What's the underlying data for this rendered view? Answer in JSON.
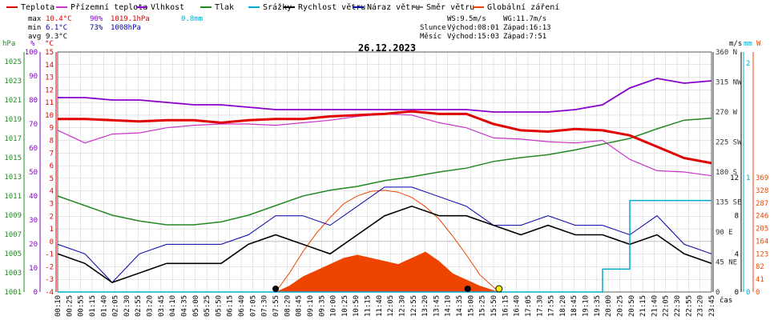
{
  "chart_data": {
    "type": "line",
    "title": "26.12.2023",
    "legend": [
      {
        "name": "Teplota",
        "color": "#e00000"
      },
      {
        "name": "Přízemní teplota",
        "color": "#cc33cc"
      },
      {
        "name": "Vlhkost",
        "color": "#8800cc"
      },
      {
        "name": "Tlak",
        "color": "#228822"
      },
      {
        "name": "Srážky",
        "color": "#00aacc"
      },
      {
        "name": "Rychlost větru",
        "color": "#000000"
      },
      {
        "name": "Náraz větru",
        "color": "#0000aa"
      },
      {
        "name": "Směr větru",
        "color": "#777777"
      },
      {
        "name": "Globální záření",
        "color": "#ee4400"
      }
    ],
    "stats": {
      "max_label": "max",
      "max_temp": "10.4°C",
      "max_hum": "90%",
      "max_press": "1019.1hPa",
      "max_rain": "0.8mm",
      "min_label": "min",
      "min_temp": "6.1°C",
      "min_hum": "73%",
      "min_press": "1008hPa",
      "avg_label": "avg",
      "avg_temp": "9.3°C"
    },
    "wind_summary": {
      "ws": "WS:9.5m/s",
      "wg": "WG:11.7m/s"
    },
    "sun": {
      "label": "Slunce",
      "rise": "Východ:08:01",
      "set": "Západ:16:13"
    },
    "moon": {
      "label": "Měsíc",
      "rise": "Východ:15:03",
      "set": "Západ:7:51"
    },
    "axis_units": {
      "hpa": "hPa",
      "pct": "%",
      "degc": "°C",
      "ms": "m/s",
      "mm": "mm",
      "w": "W",
      "time": "čas"
    },
    "axes": {
      "hpa": [
        "1025",
        "1023",
        "1021",
        "1019",
        "1017",
        "1015",
        "1013",
        "1011",
        "1009",
        "1007",
        "1005",
        "1003",
        "1001"
      ],
      "pct": [
        "100",
        "90",
        "80",
        "70",
        "60",
        "50",
        "40",
        "30",
        "20",
        "10",
        "0"
      ],
      "degc": [
        "15",
        "14",
        "13",
        "12",
        "11",
        "10",
        "9",
        "8",
        "7",
        "6",
        "5",
        "4",
        "3",
        "2",
        "1",
        "0",
        "-1",
        "-2",
        "-3",
        "-4"
      ],
      "dir": [
        "360 N",
        "315 NW",
        "270 W",
        "225 SW",
        "180 S",
        "135 SE",
        "90 E",
        "45 NE",
        "0"
      ],
      "ms": [
        "12",
        "8",
        "4",
        "0"
      ],
      "mm": [
        "2",
        "1",
        "0"
      ],
      "w": [
        "369",
        "328",
        "287",
        "246",
        "205",
        "164",
        "123",
        "82",
        "41",
        "0"
      ]
    },
    "x_ticks": [
      "00:10",
      "00:25",
      "00:55",
      "01:15",
      "01:40",
      "02:05",
      "02:30",
      "02:55",
      "03:20",
      "03:45",
      "04:10",
      "04:35",
      "05:00",
      "05:25",
      "05:50",
      "06:15",
      "06:40",
      "07:05",
      "07:30",
      "07:55",
      "08:20",
      "08:45",
      "09:10",
      "09:35",
      "10:00",
      "10:25",
      "10:50",
      "11:15",
      "11:40",
      "12:05",
      "12:30",
      "12:55",
      "13:20",
      "13:45",
      "14:10",
      "14:35",
      "15:00",
      "15:25",
      "15:50",
      "16:15",
      "16:40",
      "17:05",
      "17:30",
      "17:55",
      "18:20",
      "18:45",
      "19:10",
      "19:35",
      "20:00",
      "20:25",
      "20:50",
      "21:15",
      "21:40",
      "22:05",
      "22:30",
      "22:55",
      "23:20",
      "23:45"
    ],
    "series_hours": [
      0,
      1,
      2,
      3,
      4,
      5,
      6,
      7,
      8,
      9,
      10,
      11,
      12,
      13,
      14,
      15,
      16,
      17,
      18,
      19,
      20,
      21,
      22,
      23,
      24
    ],
    "temperature_c": [
      9.7,
      9.7,
      9.6,
      9.5,
      9.6,
      9.6,
      9.4,
      9.6,
      9.7,
      9.7,
      9.9,
      10.0,
      10.1,
      10.3,
      10.1,
      10.1,
      9.3,
      8.8,
      8.7,
      8.9,
      8.8,
      8.4,
      7.5,
      6.6,
      6.2
    ],
    "ground_temp_c": [
      8.8,
      7.8,
      8.5,
      8.6,
      9.0,
      9.2,
      9.3,
      9.3,
      9.2,
      9.4,
      9.6,
      9.9,
      10.1,
      10.0,
      9.4,
      9.0,
      8.2,
      8.1,
      7.9,
      7.8,
      8.0,
      6.5,
      5.6,
      5.5,
      5.2
    ],
    "humidity_pct": [
      81,
      81,
      80,
      80,
      79,
      78,
      78,
      77,
      76,
      76,
      76,
      76,
      76,
      76,
      76,
      76,
      75,
      75,
      75,
      76,
      78,
      85,
      89,
      87,
      88
    ],
    "pressure_hpa": [
      1011.0,
      1010.0,
      1009.0,
      1008.4,
      1008.0,
      1008.0,
      1008.3,
      1009.0,
      1010.0,
      1011.0,
      1011.6,
      1012.0,
      1012.6,
      1013.0,
      1013.5,
      1013.9,
      1014.6,
      1015.0,
      1015.3,
      1015.8,
      1016.4,
      1017.0,
      1018.0,
      1018.9,
      1019.1
    ],
    "wind_speed_ms": [
      4,
      3,
      1,
      2,
      3,
      3,
      3,
      5,
      6,
      5,
      4,
      6,
      8,
      9,
      8,
      8,
      7,
      6,
      7,
      6,
      6,
      5,
      6,
      4,
      3
    ],
    "wind_gust_ms": [
      5,
      4,
      1,
      4,
      5,
      5,
      5,
      6,
      8,
      8,
      7,
      9,
      11,
      11,
      10,
      9,
      7,
      7,
      8,
      7,
      7,
      6,
      8,
      5,
      4
    ],
    "rain_mm": [
      0,
      0,
      0,
      0,
      0,
      0,
      0,
      0,
      0,
      0,
      0,
      0,
      0,
      0,
      0,
      0,
      0,
      0,
      0,
      0,
      0.2,
      0.8,
      0.8,
      0.8,
      0.8
    ],
    "radiation_hours": [
      8.0,
      8.5,
      9.0,
      9.5,
      10.0,
      10.5,
      11.0,
      11.5,
      12.0,
      12.5,
      13.0,
      13.5,
      14.0,
      14.5,
      15.0,
      15.5,
      16.2
    ],
    "radiation_w_m2": [
      0,
      20,
      50,
      70,
      90,
      110,
      120,
      110,
      100,
      90,
      110,
      130,
      100,
      60,
      40,
      20,
      0
    ],
    "radiation_theoretical_w_m2": [
      0,
      60,
      130,
      190,
      240,
      285,
      310,
      325,
      328,
      322,
      305,
      275,
      235,
      180,
      120,
      55,
      0
    ]
  },
  "colors": {
    "grid": "#cccccc",
    "humidity": "#8800cc",
    "temperature": "#e00000",
    "ground": "#cc33cc",
    "pressure": "#228822",
    "wind": "#000000",
    "gust": "#0000aa",
    "rain": "#00aacc",
    "radiation": "#ee4400",
    "direction": "#777777"
  }
}
